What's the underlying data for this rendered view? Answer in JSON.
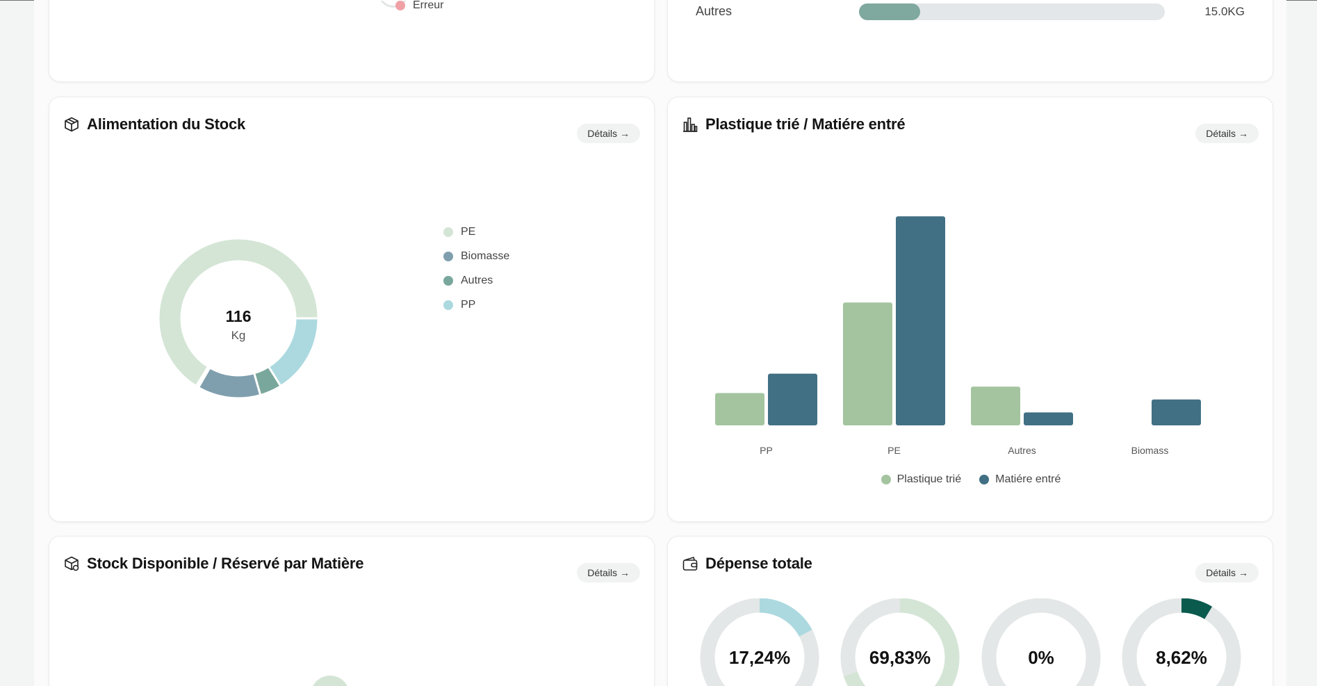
{
  "top_left_card": {
    "legend_item": "Erreur",
    "legend_color": "#f0a1a6"
  },
  "top_right_card": {
    "label": "Autres",
    "value": "15.0KG",
    "progress": 0.2,
    "fill_color": "#7fa89f",
    "track_color": "#e4e7e9"
  },
  "alimentation": {
    "title": "Alimentation du Stock",
    "details_label": "Détails",
    "icon": "box-icon",
    "center_value": "116",
    "center_unit": "Kg",
    "legend": [
      {
        "label": "PE",
        "color": "#d4e5d5"
      },
      {
        "label": "Biomasse",
        "color": "#7f9fae"
      },
      {
        "label": "Autres",
        "color": "#7aa79b"
      },
      {
        "label": "PP",
        "color": "#acd9e0"
      }
    ]
  },
  "plastique": {
    "title": "Plastique trié / Matiére entré",
    "details_label": "Détails",
    "icon": "bar-chart-icon"
  },
  "chart_data": {
    "type": "bar",
    "categories": [
      "PP",
      "PE",
      "Autres",
      "Biomass"
    ],
    "series": [
      {
        "name": "Plastique trié",
        "values": [
          15,
          57,
          18,
          0
        ],
        "color": "#a3c49f"
      },
      {
        "name": "Matiére entré",
        "values": [
          24,
          97,
          6,
          12
        ],
        "color": "#416f84"
      }
    ],
    "ylim": [
      0,
      100
    ],
    "legend_position": "bottom"
  },
  "stock_dispo": {
    "title": "Stock Disponible / Réservé par Matière",
    "details_label": "Détails",
    "icon": "boxes-icon",
    "partial_color": "#d4e5d5"
  },
  "depense": {
    "title": "Dépense totale",
    "details_label": "Détails",
    "icon": "wallet-icon",
    "rings": [
      {
        "label": "17,24%",
        "fraction": 0.1724,
        "color": "#acd9e0"
      },
      {
        "label": "69,83%",
        "fraction": 0.6983,
        "color": "#d4e5d5"
      },
      {
        "label": "0%",
        "fraction": 0,
        "color": "#d4e5d5"
      },
      {
        "label": "8,62%",
        "fraction": 0.0862,
        "color": "#0b5a4e"
      }
    ],
    "track_color": "#e3e7e7"
  }
}
